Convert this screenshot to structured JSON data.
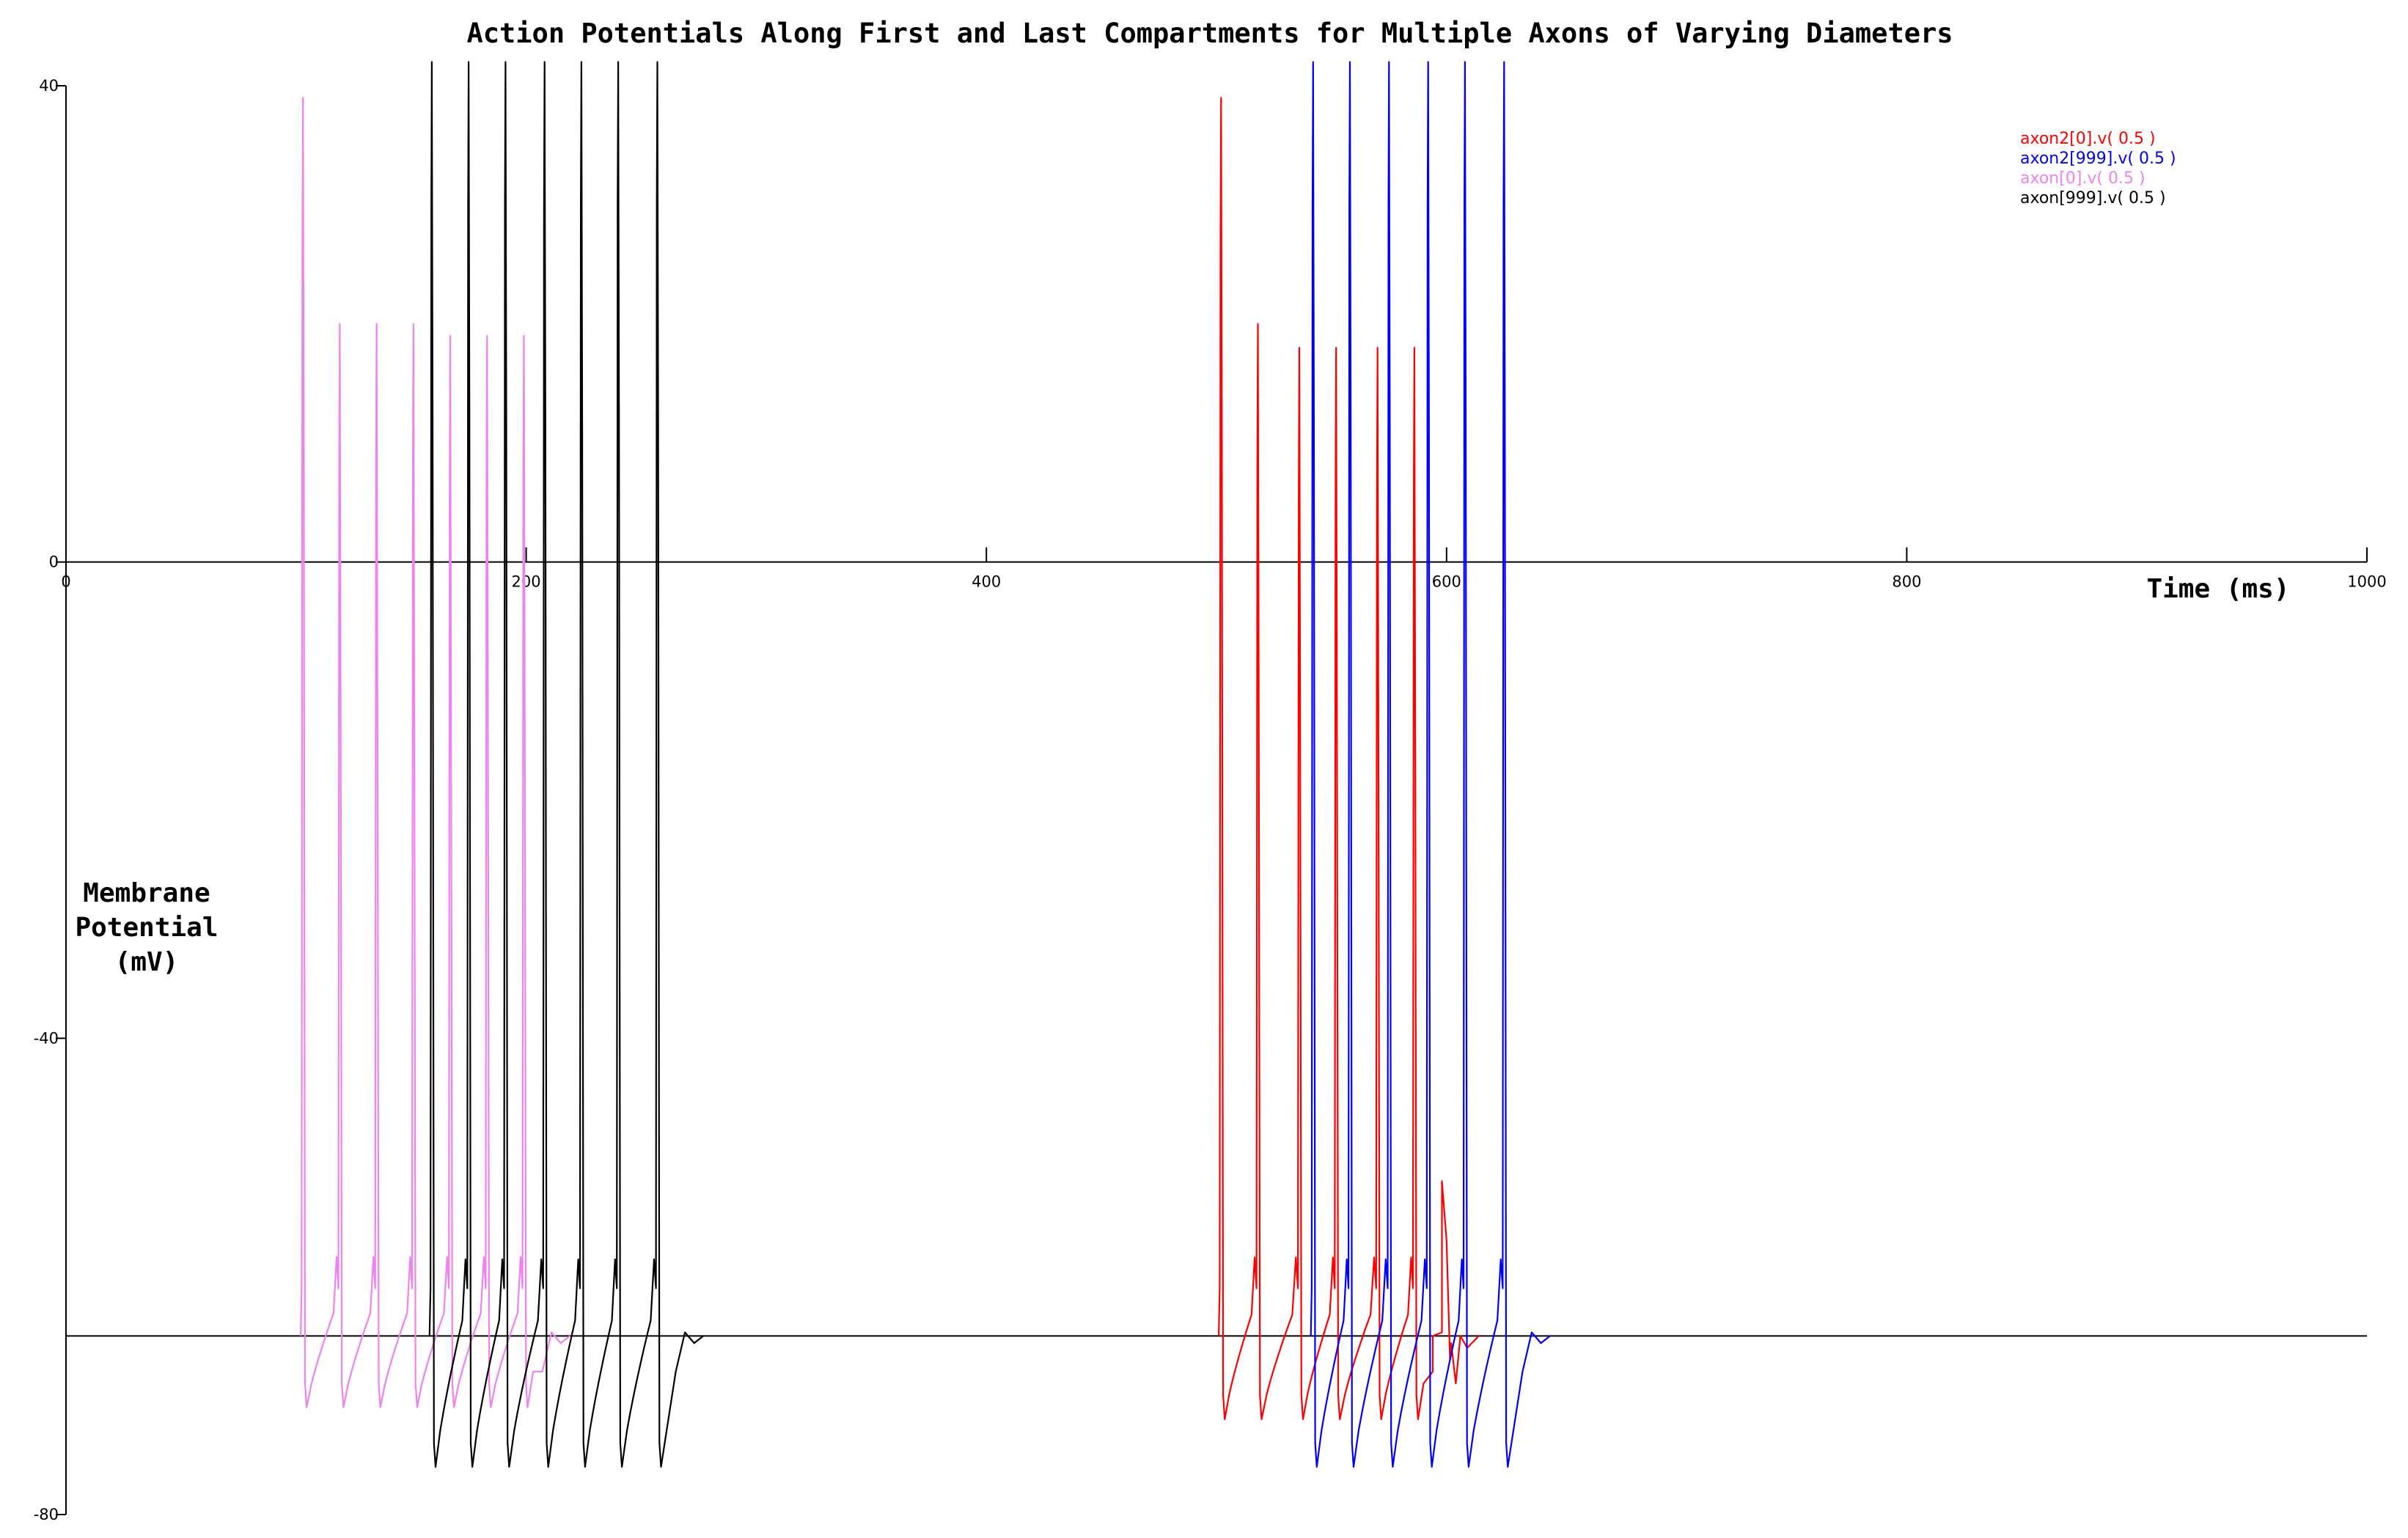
{
  "chart_data": {
    "type": "line",
    "title": "Action Potentials Along First and Last Compartments for Multiple Axons of Varying Diameters",
    "xlabel": "Time (ms)",
    "ylabel_lines": [
      "Membrane",
      "Potential",
      "(mV)"
    ],
    "xlim": [
      0,
      1000
    ],
    "ylim": [
      -80,
      40
    ],
    "xticks": [
      0,
      200,
      400,
      600,
      800,
      1000
    ],
    "yticks": [
      40,
      0,
      -40,
      -80
    ],
    "x_tick_labels": [
      "0",
      "200",
      "400",
      "600",
      "800",
      "1000"
    ],
    "y_tick_labels": [
      "40",
      "0",
      "-40",
      "-80"
    ],
    "reference_lines_y": [
      0,
      -65
    ],
    "resting_potential_mV": -65,
    "legend_position": "top-right",
    "grid": false,
    "series": [
      {
        "name": "axon2[0].v( 0.5 )",
        "color": "#ff0000",
        "spike_times_ms": [
          502,
          518,
          536,
          552,
          570,
          586
        ],
        "spike_peaks_mV": [
          39,
          20,
          18,
          18,
          18,
          18
        ],
        "trough_mV": -72,
        "extra_blip": {
          "t": 600,
          "peak": -57
        }
      },
      {
        "name": "axon2[999].v( 0.5 )",
        "color": "#0000ff",
        "spike_times_ms": [
          542,
          558,
          575,
          592,
          608,
          625
        ],
        "spike_peaks_mV": [
          42,
          42,
          42,
          42,
          42,
          42
        ],
        "trough_mV": -76
      },
      {
        "name": "axon[0].v( 0.5 )",
        "color": "#ee82ee",
        "spike_times_ms": [
          103,
          119,
          135,
          151,
          167,
          183,
          199
        ],
        "spike_peaks_mV": [
          39,
          20,
          20,
          20,
          19,
          19,
          19
        ],
        "trough_mV": -71
      },
      {
        "name": "axon[999].v( 0.5 )",
        "color": "#000000",
        "spike_times_ms": [
          159,
          175,
          191,
          208,
          224,
          240,
          257
        ],
        "spike_peaks_mV": [
          42,
          42,
          42,
          42,
          42,
          42,
          42
        ],
        "trough_mV": -76
      }
    ]
  }
}
